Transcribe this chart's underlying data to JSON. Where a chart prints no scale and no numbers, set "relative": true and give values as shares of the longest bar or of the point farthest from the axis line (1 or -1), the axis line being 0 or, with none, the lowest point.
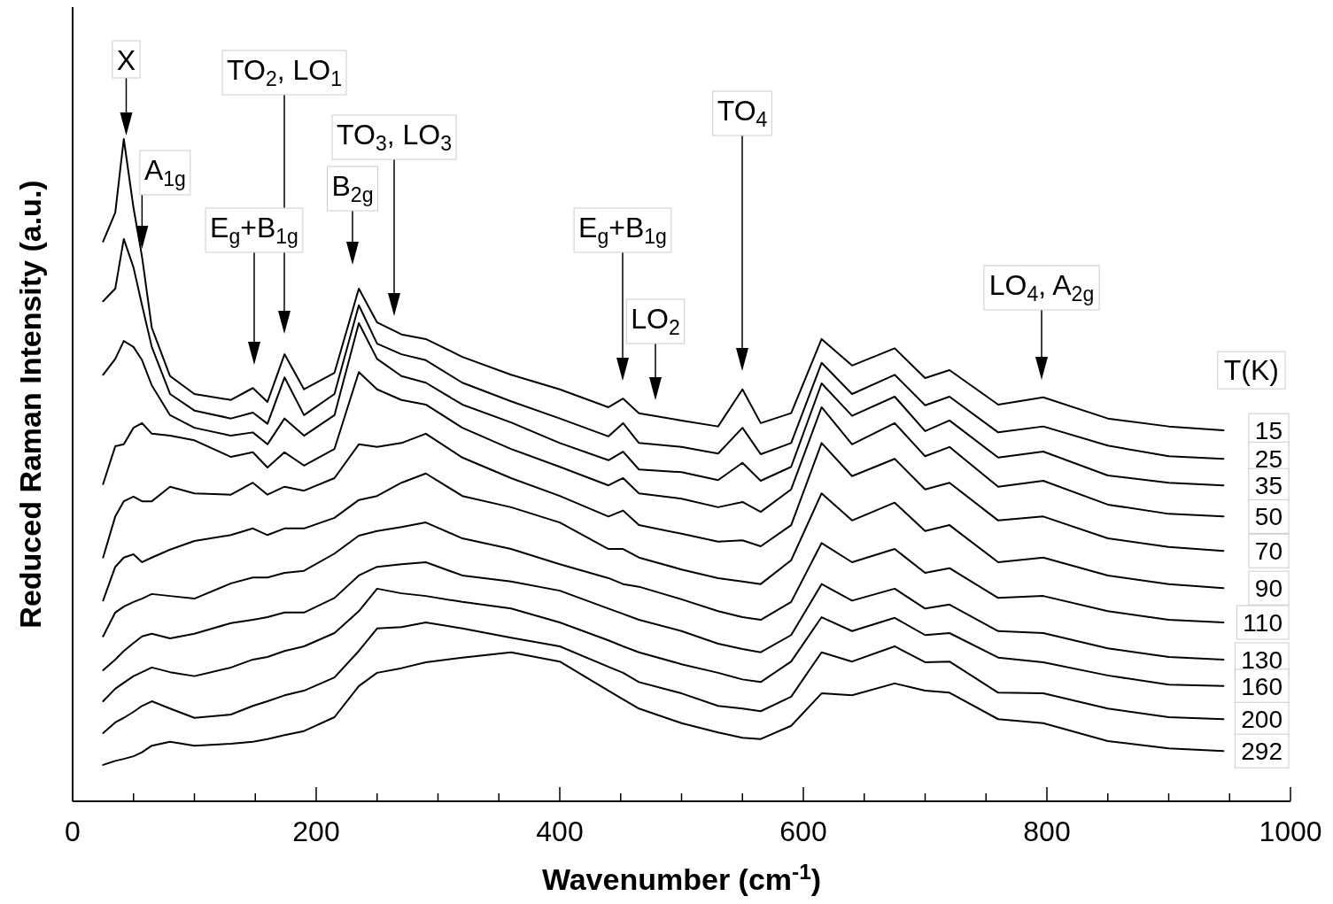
{
  "chart_data": {
    "type": "line",
    "relative": true,
    "xlabel": "Wavenumber (cm$^{-1}$)",
    "ylabel": "Reduced Raman Intensity (a.u.)",
    "legend_title": "T(K)",
    "xlim": [
      0,
      1000
    ],
    "xticks": [
      0,
      {
        "value": 50,
        "label": null
      },
      {
        "value": 100,
        "label": null
      },
      {
        "value": 150,
        "label": null
      },
      200,
      {
        "value": 250,
        "label": null
      },
      {
        "value": 300,
        "label": null
      },
      {
        "value": 350,
        "label": null
      },
      400,
      {
        "value": 450,
        "label": null
      },
      {
        "value": 500,
        "label": null
      },
      {
        "value": 550,
        "label": null
      },
      600,
      {
        "value": 650,
        "label": null
      },
      {
        "value": 700,
        "label": null
      },
      {
        "value": 750,
        "label": null
      },
      800,
      {
        "value": 850,
        "label": null
      },
      {
        "value": 900,
        "label": null
      },
      {
        "value": 950,
        "label": null
      },
      1000
    ],
    "x": [
      25,
      35,
      42,
      50,
      57,
      65,
      80,
      100,
      130,
      148,
      160,
      174,
      190,
      215,
      235,
      250,
      270,
      290,
      320,
      360,
      400,
      440,
      452,
      465,
      500,
      530,
      550,
      565,
      590,
      615,
      640,
      675,
      700,
      720,
      760,
      797,
      850,
      900,
      945
    ],
    "series": [
      {
        "name": "15",
        "color": "#000000",
        "values": [
          0.845,
          0.889,
          1,
          0.896,
          0.822,
          0.715,
          0.642,
          0.615,
          0.606,
          0.624,
          0.603,
          0.675,
          0.622,
          0.647,
          0.774,
          0.723,
          0.705,
          0.698,
          0.671,
          0.644,
          0.622,
          0.595,
          0.608,
          0.586,
          0.575,
          0.566,
          0.622,
          0.571,
          0.586,
          0.698,
          0.658,
          0.684,
          0.639,
          0.651,
          0.599,
          0.61,
          0.578,
          0.566,
          0.56
        ]
      },
      {
        "name": "25",
        "color": "#000000",
        "values": [
          0.755,
          0.774,
          0.849,
          0.806,
          0.749,
          0.686,
          0.615,
          0.59,
          0.578,
          0.587,
          0.57,
          0.64,
          0.583,
          0.615,
          0.749,
          0.691,
          0.675,
          0.666,
          0.632,
          0.604,
          0.578,
          0.551,
          0.571,
          0.541,
          0.535,
          0.525,
          0.564,
          0.524,
          0.541,
          0.662,
          0.615,
          0.644,
          0.598,
          0.611,
          0.557,
          0.566,
          0.537,
          0.521,
          0.517
        ]
      },
      {
        "name": "35",
        "color": "#000000",
        "values": [
          0.644,
          0.668,
          0.695,
          0.686,
          0.666,
          0.628,
          0.583,
          0.564,
          0.552,
          0.557,
          0.539,
          0.578,
          0.552,
          0.583,
          0.722,
          0.668,
          0.642,
          0.632,
          0.599,
          0.572,
          0.541,
          0.515,
          0.528,
          0.501,
          0.497,
          0.485,
          0.511,
          0.484,
          0.505,
          0.631,
          0.582,
          0.611,
          0.559,
          0.575,
          0.519,
          0.528,
          0.492,
          0.481,
          0.477
        ]
      },
      {
        "name": "50",
        "color": "#000000",
        "values": [
          0.479,
          0.536,
          0.539,
          0.564,
          0.571,
          0.555,
          0.552,
          0.545,
          0.52,
          0.527,
          0.504,
          0.527,
          0.507,
          0.532,
          0.648,
          0.622,
          0.606,
          0.599,
          0.564,
          0.532,
          0.505,
          0.477,
          0.488,
          0.465,
          0.457,
          0.444,
          0.452,
          0.437,
          0.471,
          0.595,
          0.539,
          0.571,
          0.521,
          0.535,
          0.475,
          0.484,
          0.448,
          0.434,
          0.43
        ]
      },
      {
        "name": "70",
        "color": "#000000",
        "values": [
          0.368,
          0.43,
          0.453,
          0.46,
          0.453,
          0.453,
          0.475,
          0.465,
          0.463,
          0.481,
          0.463,
          0.475,
          0.469,
          0.488,
          0.539,
          0.535,
          0.541,
          0.555,
          0.519,
          0.488,
          0.461,
          0.43,
          0.439,
          0.417,
          0.404,
          0.392,
          0.394,
          0.385,
          0.417,
          0.541,
          0.491,
          0.517,
          0.471,
          0.481,
          0.424,
          0.43,
          0.397,
          0.384,
          0.378
        ]
      },
      {
        "name": "90",
        "color": "#000000",
        "values": [
          0.303,
          0.354,
          0.368,
          0.373,
          0.361,
          0.368,
          0.38,
          0.393,
          0.402,
          0.412,
          0.402,
          0.412,
          0.412,
          0.428,
          0.455,
          0.461,
          0.481,
          0.495,
          0.461,
          0.444,
          0.421,
          0.381,
          0.381,
          0.368,
          0.35,
          0.337,
          0.332,
          0.328,
          0.364,
          0.465,
          0.424,
          0.451,
          0.408,
          0.417,
          0.361,
          0.368,
          0.341,
          0.328,
          0.322
        ]
      },
      {
        "name": "110",
        "color": "#000000",
        "values": [
          0.249,
          0.285,
          0.294,
          0.301,
          0.306,
          0.313,
          0.31,
          0.306,
          0.329,
          0.338,
          0.338,
          0.345,
          0.348,
          0.374,
          0.401,
          0.408,
          0.414,
          0.421,
          0.397,
          0.381,
          0.358,
          0.337,
          0.328,
          0.324,
          0.305,
          0.287,
          0.278,
          0.274,
          0.301,
          0.39,
          0.361,
          0.381,
          0.345,
          0.352,
          0.307,
          0.31,
          0.287,
          0.274,
          0.27
        ]
      },
      {
        "name": "130",
        "color": "#000000",
        "values": [
          0.198,
          0.214,
          0.227,
          0.239,
          0.249,
          0.253,
          0.246,
          0.253,
          0.269,
          0.274,
          0.278,
          0.285,
          0.285,
          0.307,
          0.341,
          0.354,
          0.358,
          0.361,
          0.341,
          0.332,
          0.318,
          0.291,
          0.283,
          0.274,
          0.257,
          0.238,
          0.23,
          0.225,
          0.251,
          0.328,
          0.303,
          0.321,
          0.291,
          0.297,
          0.257,
          0.254,
          0.231,
          0.218,
          0.214
        ]
      },
      {
        "name": "160",
        "color": "#000000",
        "values": [
          0.151,
          0.17,
          0.179,
          0.189,
          0.195,
          0.202,
          0.195,
          0.189,
          0.202,
          0.214,
          0.218,
          0.227,
          0.234,
          0.254,
          0.287,
          0.321,
          0.314,
          0.31,
          0.301,
          0.291,
          0.27,
          0.243,
          0.234,
          0.225,
          0.207,
          0.194,
          0.184,
          0.18,
          0.211,
          0.278,
          0.257,
          0.277,
          0.251,
          0.254,
          0.217,
          0.21,
          0.19,
          0.176,
          0.174
        ]
      },
      {
        "name": "200",
        "color": "#000000",
        "values": [
          0.103,
          0.119,
          0.126,
          0.135,
          0.144,
          0.151,
          0.14,
          0.126,
          0.131,
          0.144,
          0.151,
          0.16,
          0.167,
          0.187,
          0.227,
          0.261,
          0.263,
          0.27,
          0.261,
          0.247,
          0.234,
          0.203,
          0.194,
          0.18,
          0.163,
          0.144,
          0.14,
          0.136,
          0.158,
          0.225,
          0.211,
          0.234,
          0.21,
          0.211,
          0.164,
          0.163,
          0.14,
          0.127,
          0.124
        ]
      },
      {
        "name": "292",
        "color": "#000000",
        "values": [
          0.055,
          0.061,
          0.064,
          0.068,
          0.074,
          0.084,
          0.09,
          0.084,
          0.087,
          0.09,
          0.094,
          0.1,
          0.106,
          0.127,
          0.174,
          0.194,
          0.201,
          0.21,
          0.217,
          0.225,
          0.211,
          0.167,
          0.154,
          0.14,
          0.118,
          0.104,
          0.096,
          0.094,
          0.114,
          0.163,
          0.16,
          0.178,
          0.167,
          0.164,
          0.124,
          0.118,
          0.091,
          0.08,
          0.076
        ]
      }
    ],
    "annotations": [
      {
        "text": "X",
        "x": 44,
        "y": 1
      },
      {
        "text": "A$_{1g}$",
        "x": 57,
        "y": 0.829
      },
      "E$_{g}$+B$_{1g}$",
      "TO$_{2}$, LO$_{1}$",
      "B$_{2g}$",
      "TO$_{3}$, LO$_{3}$",
      "E$_{g}$+B$_{1g}$",
      "LO$_{2}$",
      "TO$_{4}$",
      "LO$_{4}$, A$_{2g}$"
    ]
  }
}
